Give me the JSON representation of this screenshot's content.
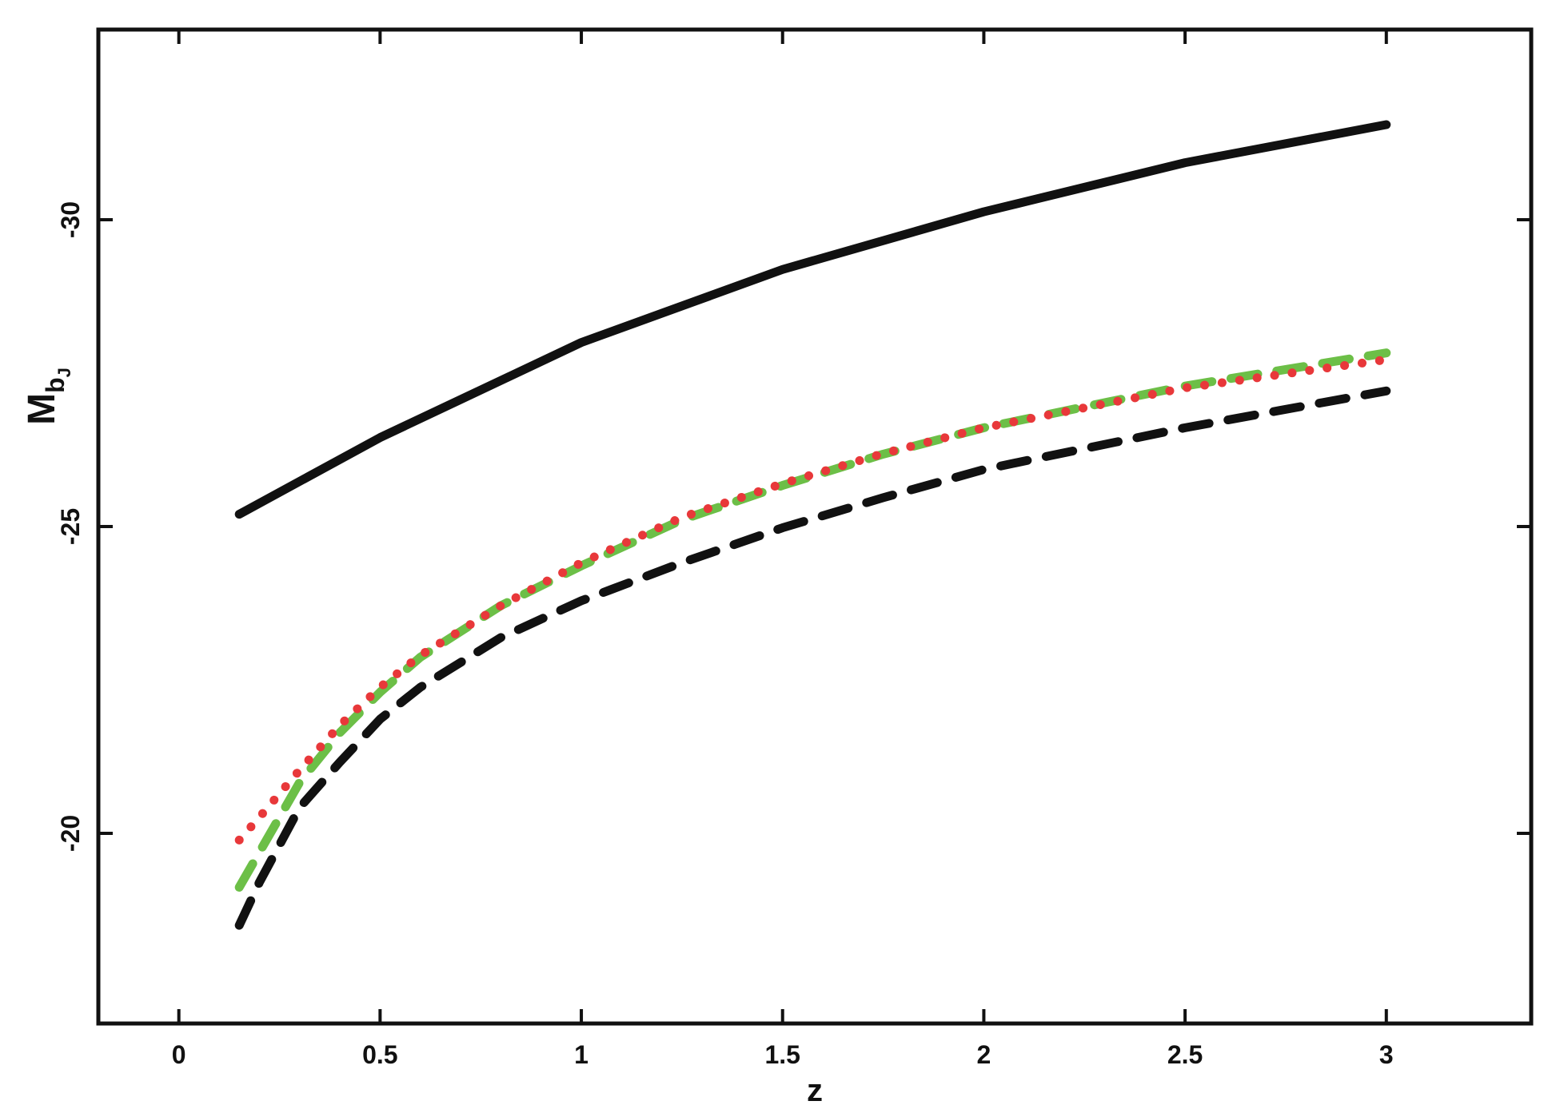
{
  "chart_data": {
    "type": "line",
    "xlabel": "z",
    "ylabel": {
      "main": "M",
      "sub": "b",
      "subsub": "J"
    },
    "xlim": [
      -0.2,
      3.36
    ],
    "ylim": [
      -16.9,
      -33.1
    ],
    "xticks": [
      0,
      0.5,
      1,
      1.5,
      2,
      2.5,
      3
    ],
    "yticks": [
      -30,
      -25,
      -20
    ],
    "series": [
      {
        "color": "#111111",
        "linestyle": "solid",
        "x": [
          0.15,
          0.5,
          1,
          1.5,
          2,
          2.5,
          3
        ],
        "values": [
          -25.2,
          -26.45,
          -28.0,
          -29.19,
          -30.13,
          -30.93,
          -31.55
        ]
      },
      {
        "color": "#111111",
        "linestyle": "dashed",
        "x": [
          0.15,
          0.2,
          0.3,
          0.4,
          0.5,
          0.6,
          0.8,
          1,
          1.25,
          1.5,
          1.75,
          2,
          2.5,
          3
        ],
        "values": [
          -18.5,
          -19.2,
          -20.42,
          -21.16,
          -21.86,
          -22.38,
          -23.19,
          -23.79,
          -24.41,
          -24.98,
          -25.47,
          -25.93,
          -26.61,
          -27.21
        ]
      },
      {
        "color": "#6cbf47",
        "linestyle": "dashed",
        "x": [
          0.15,
          0.2,
          0.3,
          0.4,
          0.5,
          0.6,
          0.8,
          1,
          1.25,
          1.5,
          1.75,
          2,
          2.5,
          3
        ],
        "values": [
          -19.12,
          -19.69,
          -20.83,
          -21.64,
          -22.3,
          -22.87,
          -23.71,
          -24.36,
          -25.11,
          -25.67,
          -26.18,
          -26.61,
          -27.29,
          -27.83
        ]
      },
      {
        "color": "#e8383a",
        "linestyle": "dotted",
        "x": [
          0.15,
          0.2,
          0.3,
          0.4,
          0.5,
          0.6,
          0.8,
          1,
          1.25,
          1.5,
          1.75,
          2,
          2.5,
          3
        ],
        "values": [
          -19.89,
          -20.26,
          -21.03,
          -21.76,
          -22.38,
          -22.9,
          -23.71,
          -24.41,
          -25.15,
          -25.7,
          -26.19,
          -26.61,
          -27.26,
          -27.72
        ]
      }
    ]
  }
}
